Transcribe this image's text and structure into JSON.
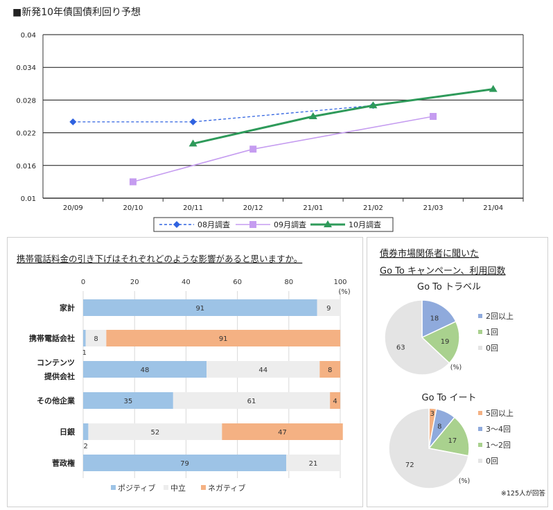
{
  "chart_data": [
    {
      "type": "line",
      "title": "■新発10年債国債利回り予想",
      "categories": [
        "20/09",
        "20/10",
        "20/11",
        "20/12",
        "21/01",
        "21/02",
        "21/03",
        "21/04"
      ],
      "ylim": [
        0.01,
        0.04
      ],
      "yticks": [
        "0.01",
        "0.016",
        "0.022",
        "0.028",
        "0.034",
        "0.04"
      ],
      "series": [
        {
          "name": "08月調査",
          "color": "#2f62e0",
          "marker": "diamond",
          "dashed": true,
          "values": [
            0.024,
            null,
            0.024,
            null,
            null,
            0.027,
            null,
            null
          ]
        },
        {
          "name": "09月調査",
          "color": "#c59cf0",
          "marker": "square",
          "dashed": false,
          "values": [
            null,
            0.013,
            null,
            0.019,
            null,
            null,
            0.025,
            null
          ]
        },
        {
          "name": "10月調査",
          "color": "#2e9a5a",
          "marker": "triangle",
          "dashed": false,
          "values": [
            null,
            null,
            0.02,
            null,
            0.025,
            0.027,
            null,
            0.03
          ]
        }
      ]
    },
    {
      "type": "bar",
      "stacked": true,
      "title": "携帯電話料金の引き下げはそれぞれどのような影響があると思いますか。",
      "xlim": [
        0,
        100
      ],
      "xticks": [
        "0",
        "20",
        "40",
        "60",
        "80",
        "100"
      ],
      "unit": "(%)",
      "categories": [
        "家計",
        "携帯電話会社",
        "コンテンツ提供会社",
        "その他企業",
        "日銀",
        "菅政権"
      ],
      "category_lines": [
        [
          "家計"
        ],
        [
          "携帯電話会社"
        ],
        [
          "コンテンツ",
          "提供会社"
        ],
        [
          "その他企業"
        ],
        [
          "日銀"
        ],
        [
          "菅政権"
        ]
      ],
      "series": [
        {
          "name": "ポジティブ",
          "color": "#9dc3e6",
          "values": [
            91,
            1,
            48,
            35,
            2,
            79
          ]
        },
        {
          "name": "中立",
          "color": "#ededed",
          "values": [
            9,
            8,
            44,
            61,
            52,
            21
          ]
        },
        {
          "name": "ネガティブ",
          "color": "#f4b183",
          "values": [
            0,
            91,
            8,
            4,
            47,
            0
          ]
        }
      ]
    },
    {
      "type": "pie",
      "title": "Go To トラベル",
      "unit": "(%)",
      "labels": [
        "2回以上",
        "1回",
        "0回"
      ],
      "values": [
        18,
        19,
        63
      ],
      "colors": [
        "#8faadc",
        "#a9d18e",
        "#e4e4e4"
      ]
    },
    {
      "type": "pie",
      "title": "Go To イート",
      "unit": "(%)",
      "labels": [
        "5回以上",
        "3〜4回",
        "1〜2回",
        "0回"
      ],
      "values": [
        3,
        8,
        17,
        72
      ],
      "colors": [
        "#f4b183",
        "#8faadc",
        "#a9d18e",
        "#e4e4e4"
      ]
    }
  ],
  "pies_panel": {
    "title_line1": "債券市場関係者に聞いた",
    "title_line2": "Go To キャンペーン、利用回数",
    "note": "※125人が回答"
  }
}
